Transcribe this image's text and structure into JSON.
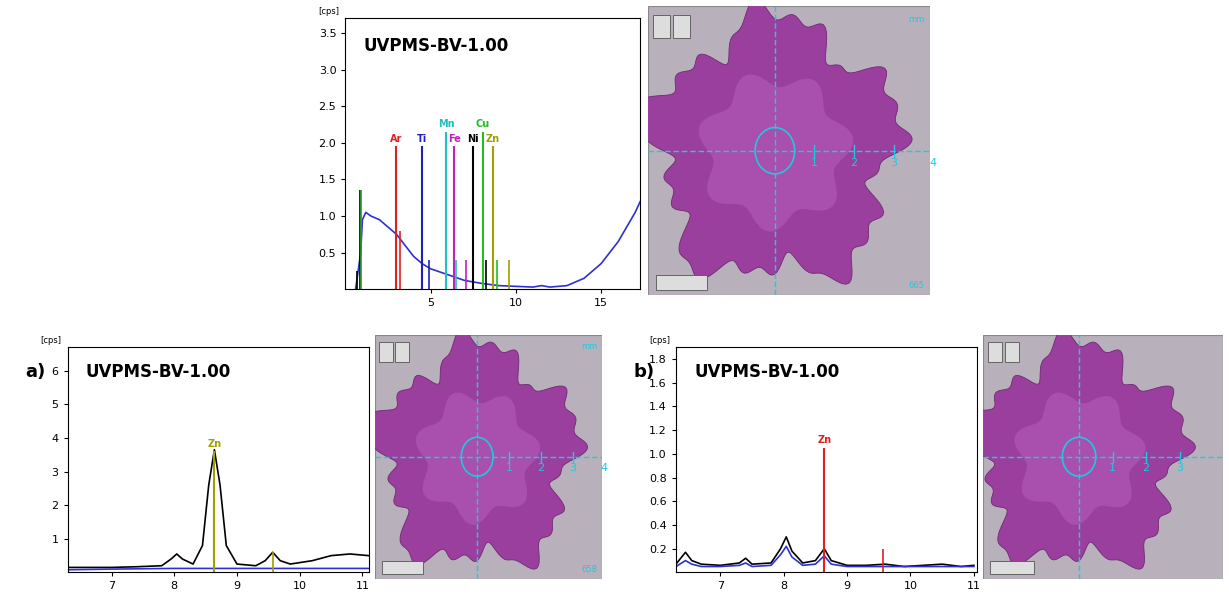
{
  "chart_data": [
    {
      "type": "line",
      "title": "UVPMS-BV-1.00",
      "y_unit_label": "[cps]",
      "xlim": [
        0,
        17.3
      ],
      "xticks": [
        5,
        10,
        15
      ],
      "ylim": [
        0,
        3.7
      ],
      "yticks": [
        {
          "value": 0.5,
          "label": "0.5"
        },
        {
          "value": 1,
          "label": "1.0"
        },
        {
          "value": 1.5,
          "label": "1.5"
        },
        {
          "value": 2,
          "label": "2.0"
        },
        {
          "value": 2.5,
          "label": "2.5"
        },
        {
          "value": 3,
          "label": "3.0"
        },
        {
          "value": 3.5,
          "label": "3.5"
        }
      ],
      "series": [
        {
          "color": "#3030d0",
          "x": [
            0.6,
            0.9,
            1.0,
            1.2,
            1.5,
            2.0,
            2.5,
            3.0,
            3.5,
            4.0,
            4.5,
            5.0,
            6.0,
            7.0,
            8.0,
            9.0,
            10.0,
            11.0,
            11.5,
            12.0,
            13.0,
            14.0,
            15.0,
            16.0,
            17.0,
            17.3
          ],
          "values": [
            0.0,
            0.5,
            0.95,
            1.05,
            1.0,
            0.95,
            0.85,
            0.75,
            0.6,
            0.45,
            0.35,
            0.28,
            0.2,
            0.12,
            0.08,
            0.05,
            0.04,
            0.03,
            0.05,
            0.03,
            0.05,
            0.15,
            0.35,
            0.65,
            1.05,
            1.2
          ]
        }
      ],
      "element_lines": [
        {
          "label": "Ar",
          "x": 2.96,
          "value": 1.95,
          "color": "#e02020"
        },
        {
          "label": "Ti",
          "x": 4.51,
          "value": 1.95,
          "color": "#2020c0"
        },
        {
          "label": "Mn",
          "x": 5.9,
          "value": 2.15,
          "color": "#20c0c0"
        },
        {
          "label": "Fe",
          "x": 6.4,
          "value": 1.95,
          "color": "#c020c0"
        },
        {
          "label": "Ni",
          "x": 7.47,
          "value": 1.95,
          "color": "#000000"
        },
        {
          "label": "Cu",
          "x": 8.05,
          "value": 2.15,
          "color": "#20c020"
        },
        {
          "label": "Zn",
          "x": 8.64,
          "value": 1.95,
          "color": "#a0a000"
        }
      ],
      "minor_lines": [
        {
          "x": 0.7,
          "value": 0.25,
          "color": "#000000"
        },
        {
          "x": 0.85,
          "value": 1.35,
          "color": "#000000"
        },
        {
          "x": 0.93,
          "value": 1.35,
          "color": "#20a020"
        },
        {
          "x": 3.19,
          "value": 0.8,
          "color": "#e02020"
        },
        {
          "x": 4.93,
          "value": 0.4,
          "color": "#2020c0"
        },
        {
          "x": 6.49,
          "value": 0.4,
          "color": "#20c0c0"
        },
        {
          "x": 7.06,
          "value": 0.4,
          "color": "#c020c0"
        },
        {
          "x": 8.26,
          "value": 0.4,
          "color": "#000000"
        },
        {
          "x": 8.9,
          "value": 0.4,
          "color": "#20c020"
        },
        {
          "x": 9.57,
          "value": 0.4,
          "color": "#a0a000"
        }
      ]
    },
    {
      "type": "line",
      "title": "UVPMS-BV-1.00",
      "panel_label": "a)",
      "y_unit_label": "[cps]",
      "xlim": [
        6.3,
        11.1
      ],
      "xticks": [
        7,
        8,
        9,
        10,
        11
      ],
      "ylim": [
        0,
        6.7
      ],
      "yticks": [
        1,
        2,
        3,
        4,
        5,
        6
      ],
      "series": [
        {
          "color": "#000000",
          "x": [
            6.3,
            6.6,
            7.0,
            7.4,
            7.8,
            7.95,
            8.04,
            8.13,
            8.3,
            8.45,
            8.55,
            8.64,
            8.73,
            8.83,
            9.0,
            9.3,
            9.45,
            9.57,
            9.69,
            9.85,
            10.2,
            10.5,
            10.8,
            11.1
          ],
          "values": [
            0.15,
            0.15,
            0.15,
            0.17,
            0.2,
            0.4,
            0.55,
            0.4,
            0.25,
            0.8,
            2.6,
            3.65,
            2.6,
            0.8,
            0.25,
            0.2,
            0.35,
            0.6,
            0.35,
            0.25,
            0.35,
            0.5,
            0.55,
            0.5
          ]
        },
        {
          "color": "#3030d0",
          "x": [
            6.3,
            7.0,
            8.0,
            8.64,
            9.0,
            10.0,
            11.1
          ],
          "values": [
            0.08,
            0.1,
            0.12,
            0.12,
            0.12,
            0.12,
            0.12
          ]
        }
      ],
      "element_lines": [
        {
          "label": "Zn",
          "x": 8.64,
          "value": 3.6,
          "color": "#a0a000"
        }
      ],
      "minor_lines": [
        {
          "x": 9.57,
          "value": 0.6,
          "color": "#a0a000"
        }
      ]
    },
    {
      "type": "line",
      "title": "UVPMS-BV-1.00",
      "panel_label": "b)",
      "y_unit_label": "[cps]",
      "xlim": [
        6.3,
        11.05
      ],
      "xticks": [
        7,
        8,
        9,
        10,
        11
      ],
      "ylim": [
        0,
        1.9
      ],
      "yticks": [
        {
          "value": 0.2,
          "label": "0.2"
        },
        {
          "value": 0.4,
          "label": "0.4"
        },
        {
          "value": 0.6,
          "label": "0.6"
        },
        {
          "value": 0.8,
          "label": "0.8"
        },
        {
          "value": 1,
          "label": "1.0"
        },
        {
          "value": 1.2,
          "label": "1.2"
        },
        {
          "value": 1.4,
          "label": "1.4"
        },
        {
          "value": 1.6,
          "label": "1.6"
        },
        {
          "value": 1.8,
          "label": "1.8"
        }
      ],
      "series": [
        {
          "color": "#000000",
          "x": [
            6.3,
            6.45,
            6.55,
            6.7,
            7.0,
            7.3,
            7.4,
            7.5,
            7.8,
            7.95,
            8.04,
            8.13,
            8.3,
            8.5,
            8.64,
            8.75,
            9.0,
            9.3,
            9.6,
            9.9,
            10.2,
            10.5,
            10.8,
            11.0
          ],
          "values": [
            0.07,
            0.17,
            0.1,
            0.07,
            0.06,
            0.08,
            0.12,
            0.07,
            0.08,
            0.2,
            0.3,
            0.18,
            0.08,
            0.1,
            0.2,
            0.1,
            0.06,
            0.06,
            0.07,
            0.05,
            0.06,
            0.07,
            0.05,
            0.06
          ]
        },
        {
          "color": "#3030d0",
          "x": [
            6.3,
            6.45,
            6.55,
            6.7,
            7.0,
            7.3,
            7.4,
            7.5,
            7.8,
            7.95,
            8.04,
            8.13,
            8.3,
            8.5,
            8.64,
            8.75,
            9.0,
            9.3,
            9.6,
            9.9,
            10.2,
            10.5,
            10.8,
            11.0
          ],
          "values": [
            0.05,
            0.1,
            0.07,
            0.05,
            0.05,
            0.06,
            0.08,
            0.05,
            0.06,
            0.15,
            0.22,
            0.13,
            0.06,
            0.07,
            0.14,
            0.07,
            0.05,
            0.05,
            0.05,
            0.05,
            0.05,
            0.05,
            0.05,
            0.05
          ]
        }
      ],
      "element_lines": [
        {
          "label": "Zn",
          "x": 8.64,
          "value": 1.05,
          "color": "#e02020"
        }
      ],
      "minor_lines": [
        {
          "x": 9.57,
          "value": 0.2,
          "color": "#e02020"
        }
      ]
    }
  ],
  "micrographs": [
    {
      "scale_labels": [
        "1",
        "2",
        "3",
        "4"
      ],
      "unit": "mm",
      "counter": "665"
    },
    {
      "scale_labels": [
        "1",
        "2",
        "3",
        "4"
      ],
      "unit": "mm",
      "counter": "658"
    },
    {
      "scale_labels": [
        "1",
        "2",
        "3"
      ]
    }
  ]
}
